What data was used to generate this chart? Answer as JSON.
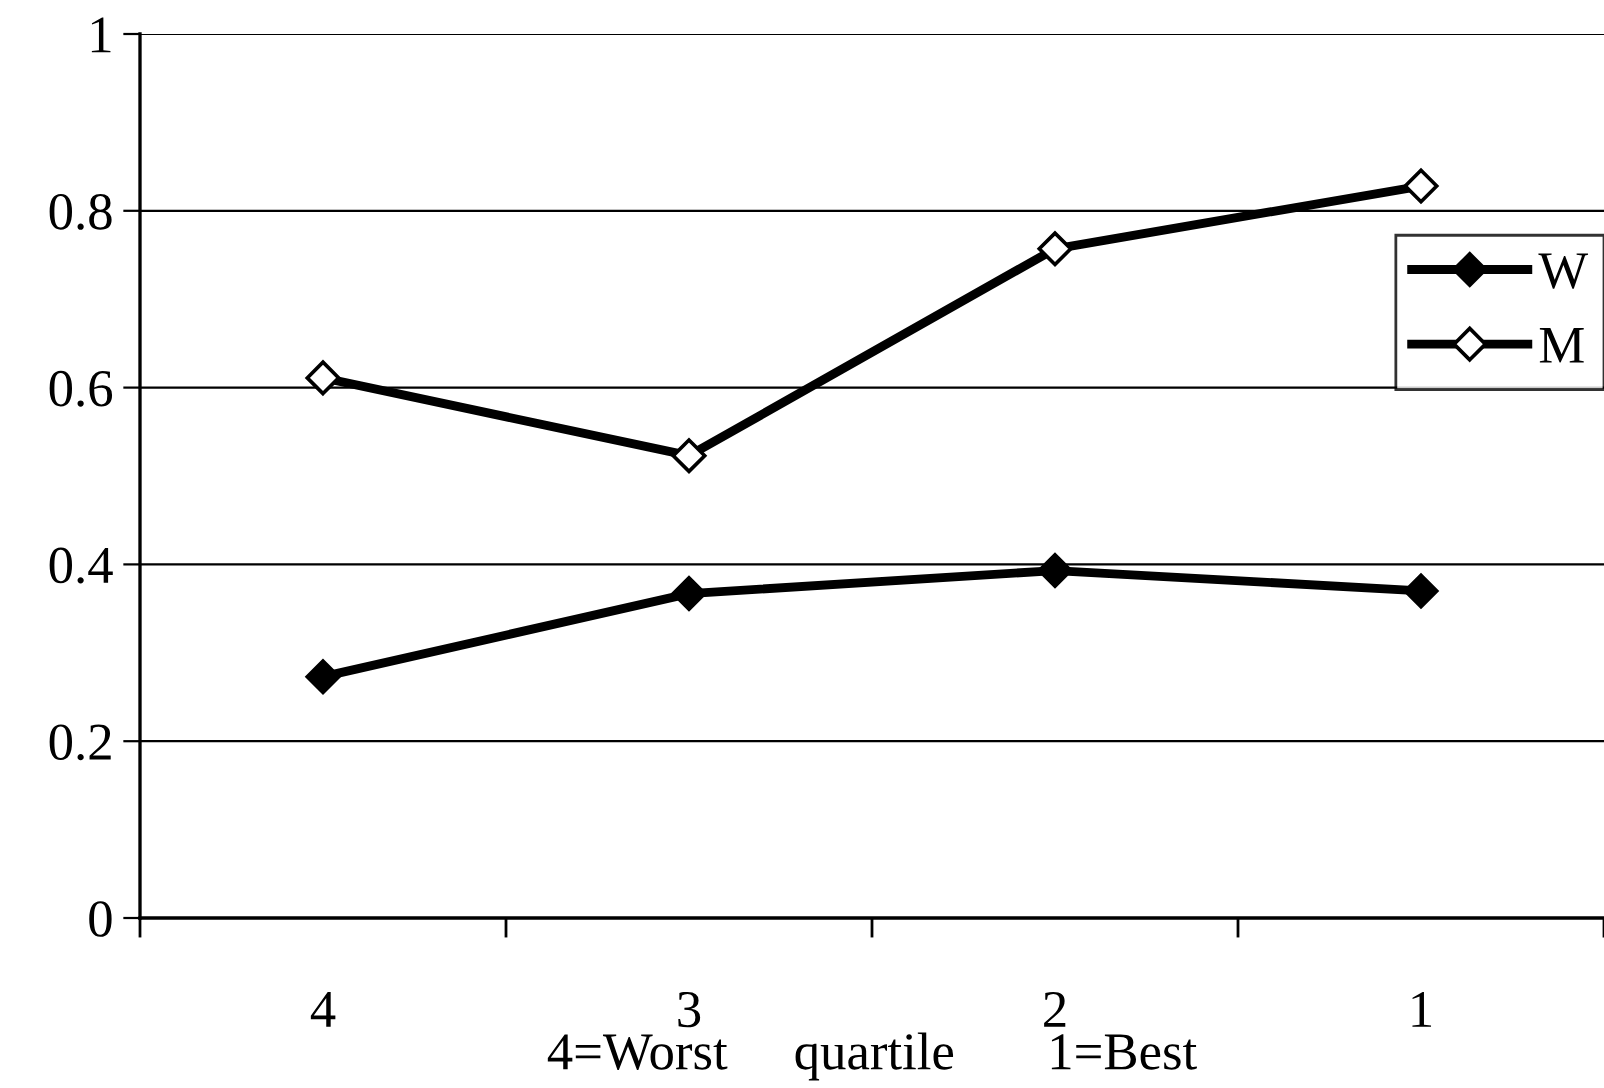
{
  "chart_data": {
    "type": "line",
    "categories": [
      "4",
      "3",
      "2",
      "1"
    ],
    "xlabel": "4=Worst     quartile       1=Best",
    "series": [
      {
        "name": "W",
        "color": "#000000",
        "values": [
          0.273,
          0.367,
          0.393,
          0.37
        ],
        "marker": "diamond"
      },
      {
        "name": "M",
        "color": "#000000",
        "values": [
          0.611,
          0.523,
          0.757,
          0.828
        ],
        "marker": "diamond"
      }
    ],
    "ylim": [
      0,
      1
    ],
    "yticks": [
      0,
      0.2,
      0.4,
      0.6,
      0.8,
      1
    ],
    "grid": "y",
    "legend": "right",
    "line_style": "solid"
  }
}
